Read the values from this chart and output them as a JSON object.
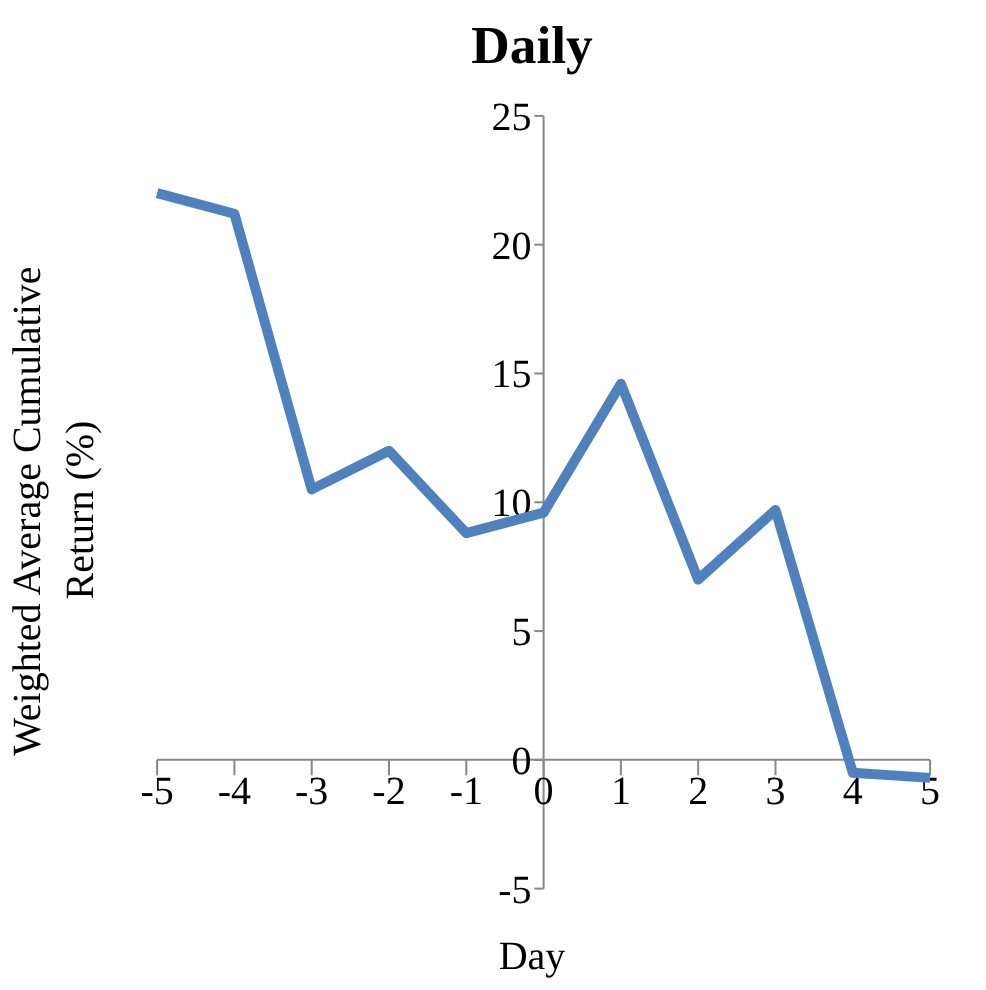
{
  "chart_data": {
    "type": "line",
    "title": "Daily",
    "xlabel": "Day",
    "ylabel": "Weighted Average Cumulative\nReturn (%)",
    "x": [
      -5,
      -4,
      -3,
      -2,
      -1,
      0,
      1,
      2,
      3,
      4,
      5
    ],
    "series": [
      {
        "color": "#4f81bd",
        "values": [
          22.0,
          21.2,
          10.5,
          12.0,
          8.8,
          9.6,
          14.6,
          7.0,
          9.7,
          -0.5,
          -0.7
        ]
      }
    ],
    "xlim": [
      -5,
      5
    ],
    "ylim": [
      -5,
      25
    ],
    "xticks": [
      -5,
      -4,
      -3,
      -2,
      -1,
      0,
      1,
      2,
      3,
      4,
      5
    ],
    "yticks": [
      -5,
      0,
      5,
      10,
      15,
      20,
      25
    ],
    "grid": false,
    "marker": "none",
    "line_style": "solid"
  }
}
